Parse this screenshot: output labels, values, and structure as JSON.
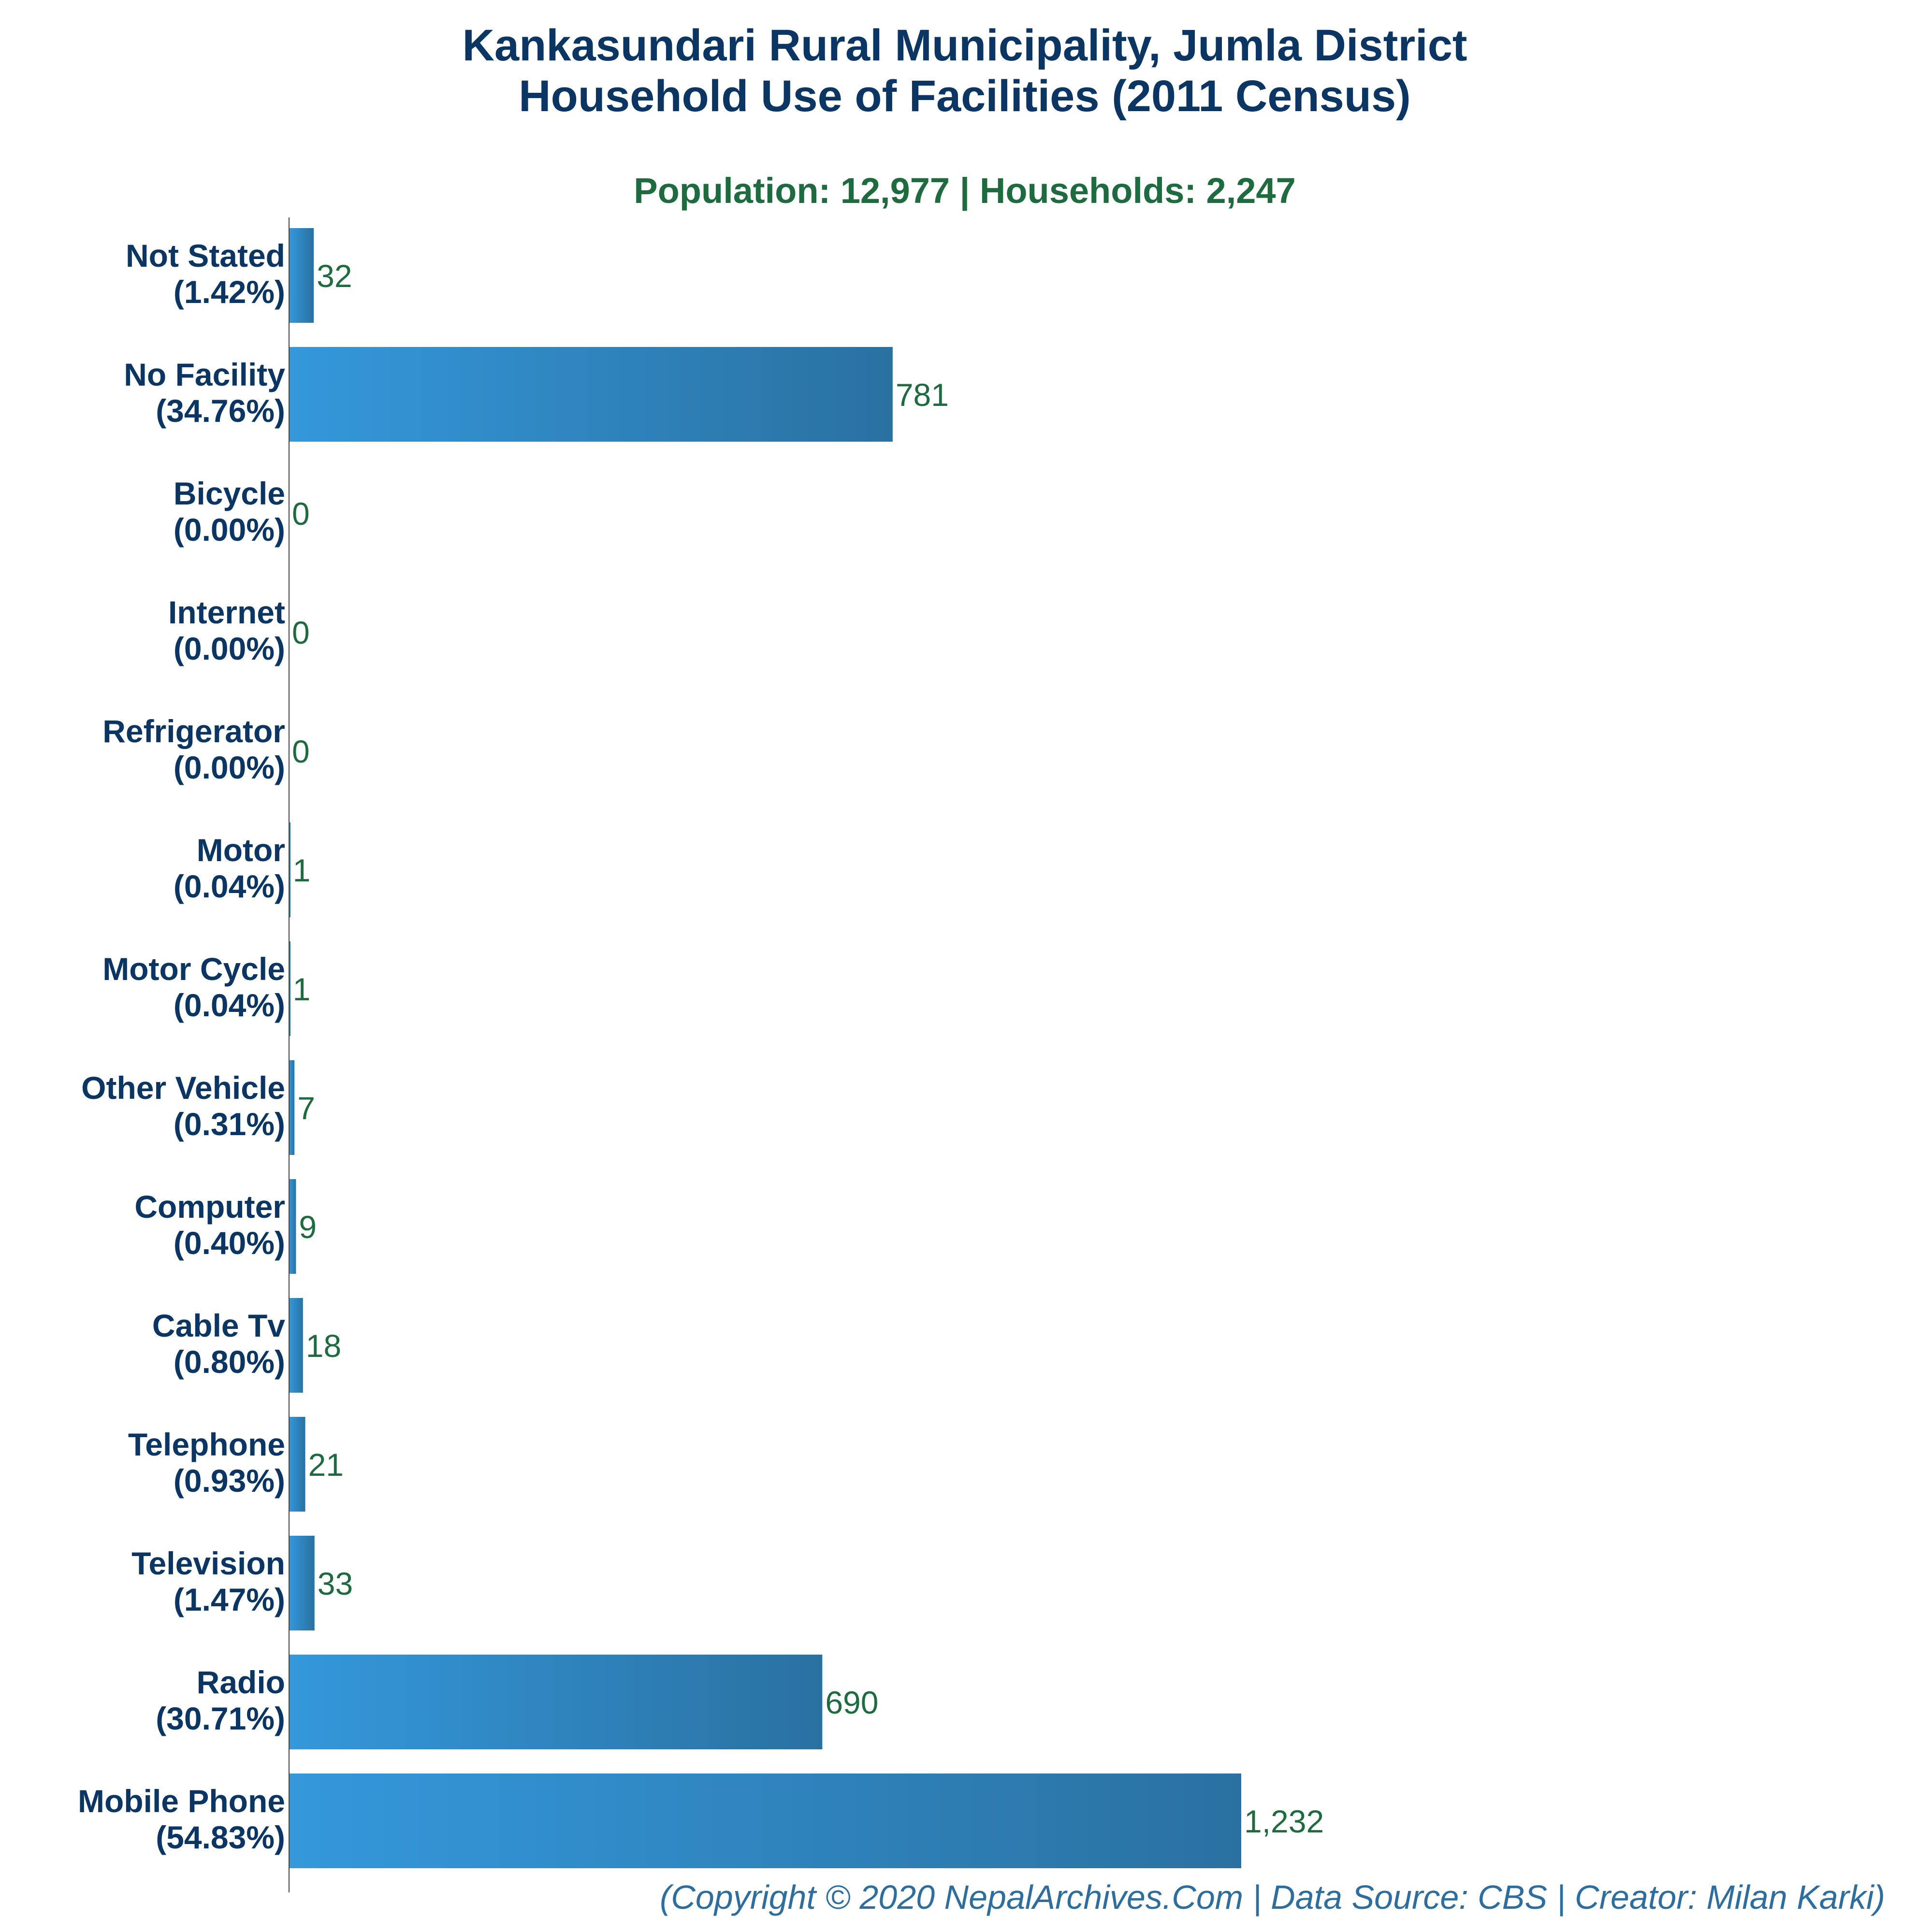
{
  "chart_data": {
    "type": "bar",
    "orientation": "horizontal",
    "title": "Kankasundari Rural Municipality, Jumla District",
    "title_line2": "Household Use of Facilities (2011 Census)",
    "subtitle": "Population: 12,977 | Households: 2,247",
    "footer": "(Copyright © 2020 NepalArchives.Com | Data Source: CBS | Creator: Milan Karki)",
    "categories": [
      {
        "name": "Not Stated",
        "pct": "(1.42%)",
        "value": 32,
        "value_label": "32"
      },
      {
        "name": "No Facility",
        "pct": "(34.76%)",
        "value": 781,
        "value_label": "781"
      },
      {
        "name": "Bicycle",
        "pct": "(0.00%)",
        "value": 0,
        "value_label": "0"
      },
      {
        "name": "Internet",
        "pct": "(0.00%)",
        "value": 0,
        "value_label": "0"
      },
      {
        "name": "Refrigerator",
        "pct": "(0.00%)",
        "value": 0,
        "value_label": "0"
      },
      {
        "name": "Motor",
        "pct": "(0.04%)",
        "value": 1,
        "value_label": "1"
      },
      {
        "name": "Motor Cycle",
        "pct": "(0.04%)",
        "value": 1,
        "value_label": "1"
      },
      {
        "name": "Other Vehicle",
        "pct": "(0.31%)",
        "value": 7,
        "value_label": "7"
      },
      {
        "name": "Computer",
        "pct": "(0.40%)",
        "value": 9,
        "value_label": "9"
      },
      {
        "name": "Cable Tv",
        "pct": "(0.80%)",
        "value": 18,
        "value_label": "18"
      },
      {
        "name": "Telephone",
        "pct": "(0.93%)",
        "value": 21,
        "value_label": "21"
      },
      {
        "name": "Television",
        "pct": "(1.47%)",
        "value": 33,
        "value_label": "33"
      },
      {
        "name": "Radio",
        "pct": "(30.71%)",
        "value": 690,
        "value_label": "690"
      },
      {
        "name": "Mobile Phone",
        "pct": "(54.83%)",
        "value": 1232,
        "value_label": "1,232"
      }
    ],
    "xlim": [
      0,
      1232
    ],
    "grid": false,
    "legend": "none",
    "colors": {
      "bar_start": "#3498db",
      "bar_end": "#2a71a1",
      "title": "#0b3563",
      "subtitle": "#1e6b3f",
      "value_label": "#1e6b3f",
      "footer": "#2e6e9e",
      "axis": "#444444"
    }
  }
}
